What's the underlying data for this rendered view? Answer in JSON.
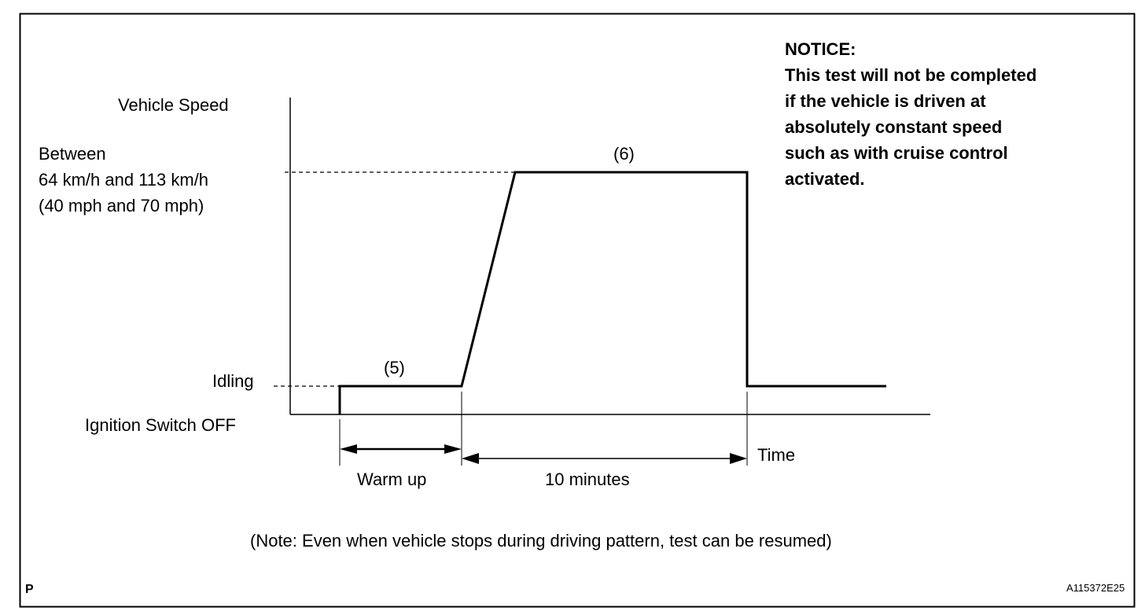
{
  "diagram": {
    "y_axis_label": "Vehicle Speed",
    "speed_range_lines": [
      "Between",
      "64 km/h and 113 km/h",
      "(40 mph and 70 mph)"
    ],
    "idling_label": "Idling",
    "ignition_label": "Ignition Switch OFF",
    "step_5": "(5)",
    "step_6": "(6)",
    "x_axis_label": "Time",
    "warm_up_label": "Warm up",
    "duration_label": "10 minutes",
    "note": "(Note: Even when vehicle stops during driving pattern, test can be resumed)"
  },
  "notice": {
    "title": "NOTICE:",
    "lines": [
      "This test will not be completed",
      "if the vehicle is driven at",
      "absolutely constant speed",
      "such as with cruise control",
      "activated."
    ]
  },
  "footer": {
    "corner_mark": "P",
    "figure_id": "A115372E25"
  }
}
